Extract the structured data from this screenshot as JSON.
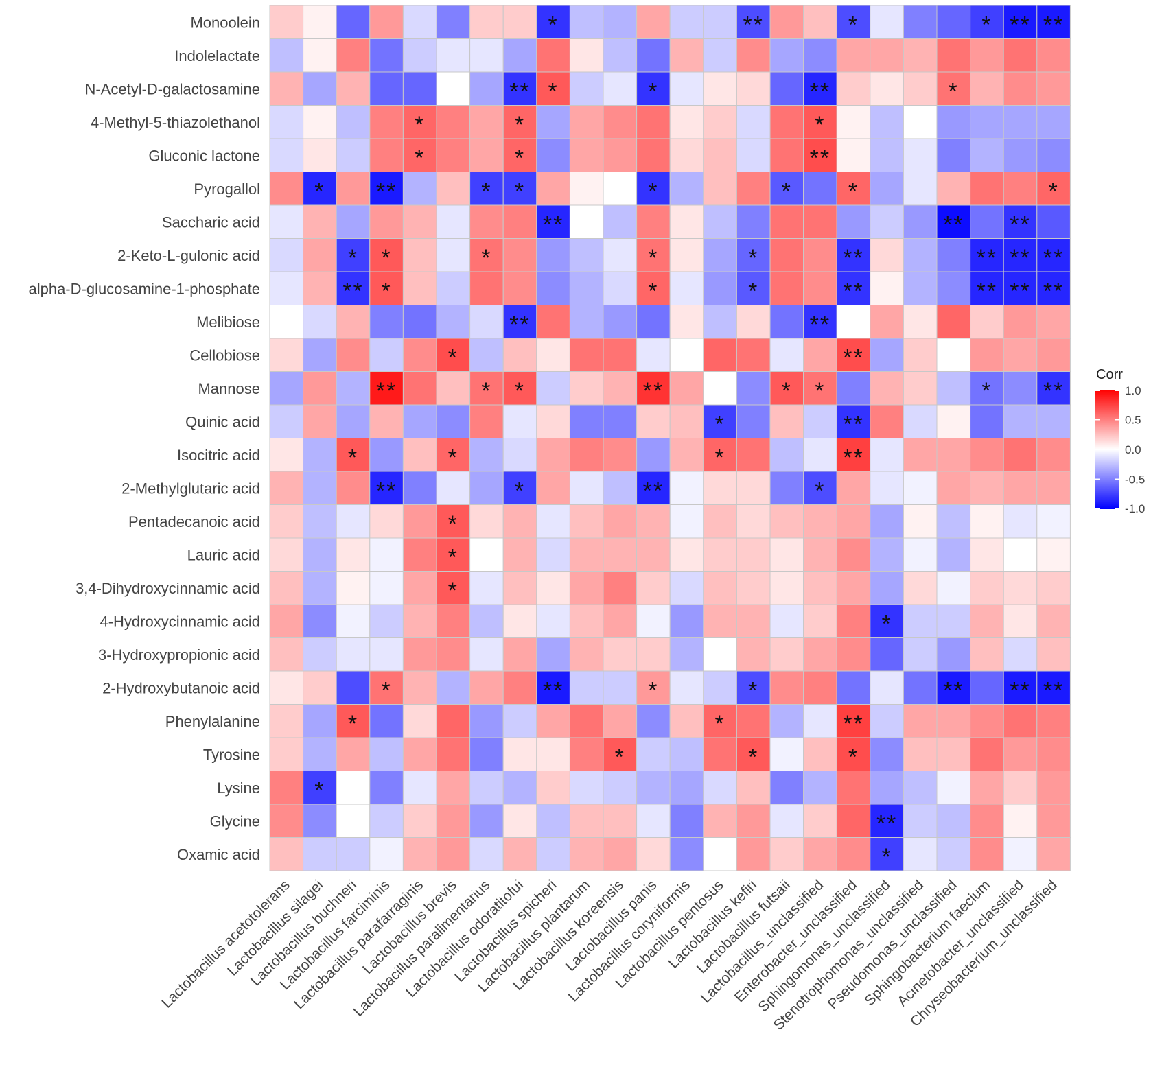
{
  "chart_data": {
    "type": "heatmap",
    "title": "",
    "legend": {
      "title": "Corr",
      "ticks": [
        "1.0",
        "0.5",
        "0.0",
        "-0.5",
        "-1.0"
      ],
      "range": [
        -1.0,
        1.0
      ],
      "placement": "right",
      "colors": {
        "low": "#0000FF",
        "mid": "#FFFFFF",
        "high": "#FF0000"
      }
    },
    "rows": [
      "Monoolein",
      "Indolelactate",
      "N-Acetyl-D-galactosamine",
      "4-Methyl-5-thiazolethanol",
      "Gluconic lactone",
      "Pyrogallol",
      "Saccharic acid",
      "2-Keto-L-gulonic acid",
      "alpha-D-glucosamine-1-phosphate",
      "Melibiose",
      "Cellobiose",
      "Mannose",
      "Quinic acid",
      "Isocitric acid",
      "2-Methylglutaric acid",
      "Pentadecanoic acid",
      "Lauric acid",
      "3,4-Dihydroxycinnamic acid",
      "4-Hydroxycinnamic acid",
      "3-Hydroxypropionic acid",
      "2-Hydroxybutanoic acid",
      "Phenylalanine",
      "Tyrosine",
      "Lysine",
      "Glycine",
      "Oxamic acid"
    ],
    "columns": [
      "Lactobacillus acetotolerans",
      "Lactobacillus silagei",
      "Lactobacillus buchneri",
      "Lactobacillus farciminis",
      "Lactobacillus parafarraginis",
      "Lactobacillus brevis",
      "Lactobacillus paralimentarius",
      "Lactobacillus odoratitofui",
      "Lactobacillus spicheri",
      "Lactobacillus plantarum",
      "Lactobacillus koreensis",
      "Lactobacillus panis",
      "Lactobacillus coryniformis",
      "Lactobacillus pentosus",
      "Lactobacillus kefiri",
      "Lactobacillus futsaii",
      "Lactobacillus_unclassified",
      "Enterobacter_unclassified",
      "Sphingomonas_unclassified",
      "Stenotrophomonas_unclassified",
      "Pseudomonas_unclassified",
      "Sphingobacterium faecium",
      "Acinetobacter_unclassified",
      "Chryseobacterium_unclassified"
    ],
    "values": [
      [
        0.2,
        0.05,
        -0.6,
        0.4,
        -0.15,
        -0.5,
        0.2,
        0.2,
        -0.8,
        -0.25,
        -0.3,
        0.35,
        -0.2,
        -0.2,
        -0.7,
        0.4,
        0.25,
        -0.7,
        -0.1,
        -0.5,
        -0.6,
        -0.75,
        -0.9,
        -0.9
      ],
      [
        -0.25,
        0.05,
        0.5,
        -0.55,
        -0.2,
        -0.1,
        -0.1,
        -0.35,
        0.55,
        0.1,
        -0.25,
        -0.55,
        0.3,
        -0.2,
        0.45,
        -0.35,
        -0.45,
        0.35,
        0.35,
        0.3,
        0.55,
        0.4,
        0.55,
        0.45
      ],
      [
        0.3,
        -0.35,
        0.3,
        -0.6,
        -0.6,
        0.0,
        -0.35,
        -0.8,
        0.65,
        -0.2,
        -0.1,
        -0.8,
        -0.1,
        0.1,
        0.15,
        -0.6,
        -0.85,
        0.2,
        0.1,
        0.2,
        0.55,
        0.3,
        0.45,
        0.4
      ],
      [
        -0.15,
        0.05,
        -0.25,
        0.5,
        0.6,
        0.5,
        0.35,
        0.6,
        -0.35,
        0.35,
        0.45,
        0.55,
        0.1,
        0.2,
        -0.15,
        0.55,
        0.65,
        0.05,
        -0.25,
        0.0,
        -0.4,
        -0.35,
        -0.35,
        -0.35
      ],
      [
        -0.15,
        0.1,
        -0.2,
        0.5,
        0.6,
        0.5,
        0.35,
        0.6,
        -0.45,
        0.35,
        0.4,
        0.55,
        0.15,
        0.25,
        -0.15,
        0.55,
        0.7,
        0.05,
        -0.25,
        -0.1,
        -0.5,
        -0.3,
        -0.4,
        -0.45
      ],
      [
        0.45,
        -0.85,
        0.4,
        -0.9,
        -0.3,
        0.25,
        -0.75,
        -0.75,
        0.35,
        0.05,
        0.0,
        -0.8,
        -0.3,
        0.25,
        0.5,
        -0.65,
        -0.55,
        0.6,
        -0.35,
        -0.1,
        0.3,
        0.55,
        0.5,
        0.6
      ],
      [
        -0.1,
        0.3,
        -0.35,
        0.4,
        0.3,
        -0.1,
        0.45,
        0.5,
        -0.85,
        0.0,
        -0.25,
        0.5,
        0.1,
        -0.25,
        -0.5,
        0.55,
        0.55,
        -0.4,
        -0.2,
        -0.4,
        -0.95,
        -0.55,
        -0.8,
        -0.65
      ],
      [
        -0.15,
        0.35,
        -0.75,
        0.65,
        0.25,
        -0.1,
        0.55,
        0.45,
        -0.4,
        -0.25,
        -0.1,
        0.55,
        0.1,
        -0.35,
        -0.6,
        0.55,
        0.45,
        -0.8,
        0.15,
        -0.3,
        -0.5,
        -0.85,
        -0.85,
        -0.85
      ],
      [
        -0.1,
        0.3,
        -0.8,
        0.65,
        0.25,
        -0.2,
        0.55,
        0.45,
        -0.45,
        -0.3,
        -0.15,
        0.6,
        -0.1,
        -0.4,
        -0.65,
        0.55,
        0.45,
        -0.8,
        0.05,
        -0.3,
        -0.45,
        -0.85,
        -0.85,
        -0.85
      ],
      [
        0.0,
        -0.15,
        0.3,
        -0.5,
        -0.55,
        -0.3,
        -0.15,
        -0.8,
        0.55,
        -0.3,
        -0.4,
        -0.55,
        0.1,
        -0.25,
        0.15,
        -0.55,
        -0.8,
        0.0,
        0.35,
        0.1,
        0.6,
        0.2,
        0.4,
        0.35
      ],
      [
        0.15,
        -0.35,
        0.45,
        -0.2,
        0.45,
        0.7,
        -0.25,
        0.25,
        0.1,
        0.55,
        0.55,
        -0.1,
        0.0,
        0.6,
        0.55,
        -0.1,
        0.35,
        0.7,
        -0.35,
        0.2,
        0.0,
        0.4,
        0.35,
        0.4
      ],
      [
        -0.35,
        0.4,
        -0.3,
        0.9,
        0.55,
        0.25,
        0.55,
        0.65,
        -0.2,
        0.2,
        0.3,
        0.8,
        0.35,
        0.0,
        -0.45,
        0.65,
        0.55,
        -0.5,
        0.3,
        0.2,
        -0.25,
        -0.55,
        -0.45,
        -0.8
      ],
      [
        -0.2,
        0.35,
        -0.35,
        0.3,
        -0.35,
        -0.45,
        0.5,
        -0.1,
        0.15,
        -0.5,
        -0.5,
        0.2,
        0.25,
        -0.75,
        -0.5,
        0.25,
        -0.2,
        -0.8,
        0.5,
        -0.15,
        0.05,
        -0.55,
        -0.3,
        -0.3
      ],
      [
        0.1,
        -0.3,
        0.65,
        -0.4,
        0.25,
        0.6,
        -0.3,
        -0.15,
        0.35,
        0.5,
        0.45,
        -0.4,
        0.3,
        0.6,
        0.55,
        -0.25,
        -0.1,
        0.75,
        -0.1,
        0.35,
        0.35,
        0.45,
        0.55,
        0.45
      ],
      [
        0.3,
        -0.3,
        0.45,
        -0.85,
        -0.5,
        -0.1,
        -0.35,
        -0.75,
        0.35,
        -0.1,
        -0.25,
        -0.85,
        -0.05,
        0.15,
        0.15,
        -0.5,
        -0.7,
        0.35,
        -0.1,
        -0.05,
        0.35,
        0.3,
        0.35,
        0.35
      ],
      [
        0.2,
        -0.25,
        -0.1,
        0.15,
        0.4,
        0.65,
        0.15,
        0.3,
        -0.1,
        0.25,
        0.35,
        0.3,
        -0.05,
        0.25,
        0.15,
        0.25,
        0.3,
        0.35,
        -0.35,
        0.05,
        -0.25,
        0.05,
        -0.1,
        -0.05
      ],
      [
        0.15,
        -0.3,
        0.1,
        -0.05,
        0.5,
        0.65,
        0.0,
        0.3,
        -0.15,
        0.3,
        0.3,
        0.3,
        0.1,
        0.2,
        0.2,
        0.1,
        0.3,
        0.45,
        -0.3,
        -0.05,
        -0.3,
        0.1,
        0.0,
        0.05
      ],
      [
        0.25,
        -0.3,
        0.05,
        -0.05,
        0.35,
        0.65,
        -0.1,
        0.25,
        0.1,
        0.35,
        0.5,
        0.2,
        -0.15,
        0.25,
        0.2,
        0.1,
        0.25,
        0.35,
        -0.35,
        0.15,
        -0.05,
        0.2,
        0.15,
        0.2
      ],
      [
        0.35,
        -0.45,
        -0.05,
        -0.2,
        0.3,
        0.5,
        -0.25,
        0.1,
        -0.1,
        0.25,
        0.35,
        -0.05,
        -0.4,
        0.3,
        0.3,
        -0.1,
        0.2,
        0.5,
        -0.8,
        -0.2,
        -0.2,
        0.3,
        0.1,
        0.3
      ],
      [
        0.25,
        -0.2,
        -0.1,
        -0.1,
        0.4,
        0.45,
        -0.1,
        0.35,
        -0.35,
        0.3,
        0.2,
        0.2,
        -0.3,
        0.0,
        0.3,
        0.2,
        0.35,
        0.45,
        -0.6,
        -0.2,
        -0.4,
        0.25,
        -0.15,
        0.25
      ],
      [
        0.1,
        0.2,
        -0.7,
        0.55,
        0.3,
        -0.3,
        0.35,
        0.5,
        -0.9,
        -0.2,
        -0.2,
        0.4,
        -0.1,
        -0.2,
        -0.7,
        0.45,
        0.5,
        -0.55,
        -0.1,
        -0.55,
        -0.9,
        -0.6,
        -0.9,
        -0.9
      ],
      [
        0.2,
        -0.35,
        0.65,
        -0.55,
        0.15,
        0.6,
        -0.4,
        -0.2,
        0.35,
        0.55,
        0.35,
        -0.45,
        0.25,
        0.6,
        0.55,
        -0.3,
        -0.1,
        0.75,
        -0.2,
        0.35,
        0.35,
        0.45,
        0.55,
        0.5
      ],
      [
        0.2,
        -0.3,
        0.35,
        -0.25,
        0.35,
        0.55,
        -0.5,
        0.1,
        0.1,
        0.5,
        0.65,
        -0.2,
        -0.25,
        0.55,
        0.65,
        -0.05,
        0.25,
        0.7,
        -0.45,
        0.25,
        0.25,
        0.55,
        0.4,
        0.45
      ],
      [
        0.5,
        -0.75,
        0.0,
        -0.5,
        -0.1,
        0.35,
        -0.2,
        -0.3,
        0.2,
        -0.15,
        -0.2,
        -0.3,
        -0.35,
        -0.15,
        0.25,
        -0.5,
        -0.3,
        0.55,
        -0.35,
        -0.25,
        -0.05,
        0.35,
        0.2,
        0.4
      ],
      [
        0.45,
        -0.45,
        0.0,
        -0.2,
        0.2,
        0.4,
        -0.4,
        0.1,
        -0.25,
        0.25,
        0.25,
        -0.1,
        -0.5,
        0.3,
        0.4,
        -0.1,
        0.2,
        0.6,
        -0.85,
        -0.2,
        -0.25,
        0.45,
        0.05,
        0.4
      ],
      [
        0.25,
        -0.2,
        -0.2,
        -0.05,
        0.3,
        0.4,
        -0.15,
        0.3,
        -0.2,
        0.3,
        0.35,
        0.15,
        -0.45,
        0.0,
        0.4,
        0.2,
        0.35,
        0.45,
        -0.75,
        -0.1,
        -0.2,
        0.45,
        -0.05,
        0.35
      ]
    ],
    "significance": [
      [
        "",
        "",
        "",
        "",
        "",
        "",
        "",
        "",
        "*",
        "",
        "",
        "",
        "",
        "",
        "**",
        "",
        "",
        "*",
        "",
        "",
        "",
        "*",
        "**",
        "**"
      ],
      [
        "",
        "",
        "",
        "",
        "",
        "",
        "",
        "",
        "",
        "",
        "",
        "",
        "",
        "",
        "",
        "",
        "",
        "",
        "",
        "",
        "",
        "",
        "",
        ""
      ],
      [
        "",
        "",
        "",
        "",
        "",
        "",
        "",
        "**",
        "*",
        "",
        "",
        "*",
        "",
        "",
        "",
        "",
        "**",
        "",
        "",
        "",
        "*",
        "",
        "",
        ""
      ],
      [
        "",
        "",
        "",
        "",
        "*",
        "",
        "",
        "*",
        "",
        "",
        "",
        "",
        "",
        "",
        "",
        "",
        "*",
        "",
        "",
        "",
        "",
        "",
        "",
        ""
      ],
      [
        "",
        "",
        "",
        "",
        "*",
        "",
        "",
        "*",
        "",
        "",
        "",
        "",
        "",
        "",
        "",
        "",
        "**",
        "",
        "",
        "",
        "",
        "",
        "",
        ""
      ],
      [
        "",
        "*",
        "",
        "**",
        "",
        "",
        "*",
        "*",
        "",
        "",
        "",
        "*",
        "",
        "",
        "",
        "*",
        "",
        "*",
        "",
        "",
        "",
        "",
        "",
        "*"
      ],
      [
        "",
        "",
        "",
        "",
        "",
        "",
        "",
        "",
        "**",
        "",
        "",
        "",
        "",
        "",
        "",
        "",
        "",
        "",
        "",
        "",
        "**",
        "",
        "**",
        ""
      ],
      [
        "",
        "",
        "*",
        "*",
        "",
        "",
        "*",
        "",
        "",
        "",
        "",
        "*",
        "",
        "",
        "*",
        "",
        "",
        "**",
        "",
        "",
        "",
        "**",
        "**",
        "**"
      ],
      [
        "",
        "",
        "**",
        "*",
        "",
        "",
        "",
        "",
        "",
        "",
        "",
        "*",
        "",
        "",
        "*",
        "",
        "",
        "**",
        "",
        "",
        "",
        "**",
        "**",
        "**"
      ],
      [
        "",
        "",
        "",
        "",
        "",
        "",
        "",
        "**",
        "",
        "",
        "",
        "",
        "",
        "",
        "",
        "",
        "**",
        "",
        "",
        "",
        "",
        "",
        "",
        ""
      ],
      [
        "",
        "",
        "",
        "",
        "",
        "*",
        "",
        "",
        "",
        "",
        "",
        "",
        "",
        "",
        "",
        "",
        "",
        "**",
        "",
        "",
        "",
        "",
        "",
        ""
      ],
      [
        "",
        "",
        "",
        "**",
        "",
        "",
        "*",
        "*",
        "",
        "",
        "",
        "**",
        "",
        "",
        "",
        "*",
        "*",
        "",
        "",
        "",
        "",
        "*",
        "",
        "**"
      ],
      [
        "",
        "",
        "",
        "",
        "",
        "",
        "",
        "",
        "",
        "",
        "",
        "",
        "",
        "*",
        "",
        "",
        "",
        "**",
        "",
        "",
        "",
        "",
        "",
        ""
      ],
      [
        "",
        "",
        "*",
        "",
        "",
        "*",
        "",
        "",
        "",
        "",
        "",
        "",
        "",
        "*",
        "",
        "",
        "",
        "**",
        "",
        "",
        "",
        "",
        "",
        ""
      ],
      [
        "",
        "",
        "",
        "**",
        "",
        "",
        "",
        "*",
        "",
        "",
        "",
        "**",
        "",
        "",
        "",
        "",
        "*",
        "",
        "",
        "",
        "",
        "",
        "",
        ""
      ],
      [
        "",
        "",
        "",
        "",
        "",
        "*",
        "",
        "",
        "",
        "",
        "",
        "",
        "",
        "",
        "",
        "",
        "",
        "",
        "",
        "",
        "",
        "",
        "",
        ""
      ],
      [
        "",
        "",
        "",
        "",
        "",
        "*",
        "",
        "",
        "",
        "",
        "",
        "",
        "",
        "",
        "",
        "",
        "",
        "",
        "",
        "",
        "",
        "",
        "",
        ""
      ],
      [
        "",
        "",
        "",
        "",
        "",
        "*",
        "",
        "",
        "",
        "",
        "",
        "",
        "",
        "",
        "",
        "",
        "",
        "",
        "",
        "",
        "",
        "",
        "",
        ""
      ],
      [
        "",
        "",
        "",
        "",
        "",
        "",
        "",
        "",
        "",
        "",
        "",
        "",
        "",
        "",
        "",
        "",
        "",
        "",
        "*",
        "",
        "",
        "",
        "",
        ""
      ],
      [
        "",
        "",
        "",
        "",
        "",
        "",
        "",
        "",
        "",
        "",
        "",
        "",
        "",
        "",
        "",
        "",
        "",
        "",
        "",
        "",
        "",
        "",
        "",
        ""
      ],
      [
        "",
        "",
        "",
        "*",
        "",
        "",
        "",
        "",
        "**",
        "",
        "",
        "*",
        "",
        "",
        "*",
        "",
        "",
        "",
        "",
        "",
        "**",
        "",
        "**",
        "**"
      ],
      [
        "",
        "",
        "*",
        "",
        "",
        "",
        "",
        "",
        "",
        "",
        "",
        "",
        "",
        "*",
        "",
        "",
        "",
        "**",
        "",
        "",
        "",
        "",
        "",
        ""
      ],
      [
        "",
        "",
        "",
        "",
        "",
        "",
        "",
        "",
        "",
        "",
        "*",
        "",
        "",
        "",
        "*",
        "",
        "",
        "*",
        "",
        "",
        "",
        "",
        "",
        ""
      ],
      [
        "",
        "*",
        "",
        "",
        "",
        "",
        "",
        "",
        "",
        "",
        "",
        "",
        "",
        "",
        "",
        "",
        "",
        "",
        "",
        "",
        "",
        "",
        "",
        ""
      ],
      [
        "",
        "",
        "",
        "",
        "",
        "",
        "",
        "",
        "",
        "",
        "",
        "",
        "",
        "",
        "",
        "",
        "",
        "",
        "**",
        "",
        "",
        "",
        "",
        ""
      ],
      [
        "",
        "",
        "",
        "",
        "",
        "",
        "",
        "",
        "",
        "",
        "",
        "",
        "",
        "",
        "",
        "",
        "",
        "",
        "*",
        "",
        "",
        "",
        "",
        ""
      ]
    ]
  }
}
